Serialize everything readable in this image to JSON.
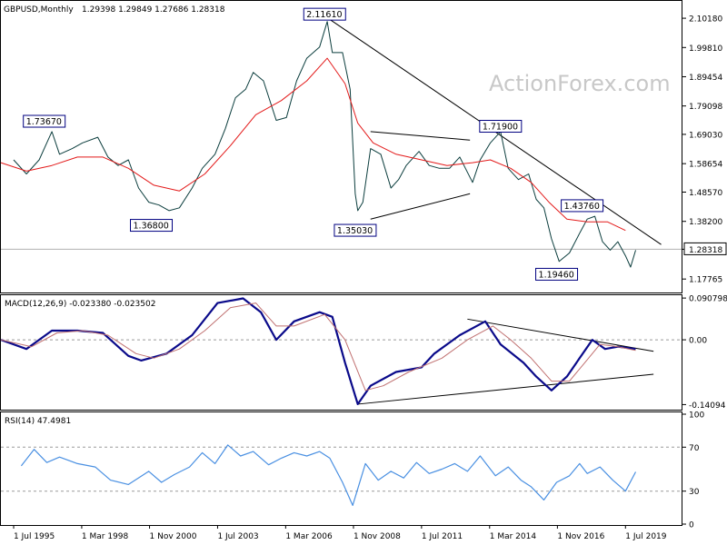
{
  "header": {
    "symbol": "GBPUSD,Monthly",
    "ohlc": "1.29398 1.29849 1.27686 1.28318"
  },
  "watermark": "ActionForex.com",
  "chart_data": [
    {
      "type": "candlestick",
      "panel": "price",
      "ylim": [
        1.13,
        2.16
      ],
      "yticks": [
        "2.10180",
        "1.99810",
        "1.89454",
        "1.79098",
        "1.69030",
        "1.58654",
        "1.48570",
        "1.38200",
        "1.28318",
        "1.17765"
      ],
      "ytick_values": [
        2.1018,
        1.9981,
        1.89454,
        1.79098,
        1.6903,
        1.58654,
        1.4857,
        1.382,
        1.28318,
        1.17765
      ],
      "current_price": "1.28318",
      "series": [
        {
          "name": "price",
          "points": [
            [
              1995.5,
              1.6
            ],
            [
              1996.0,
              1.55
            ],
            [
              1996.5,
              1.6
            ],
            [
              1996.8,
              1.66
            ],
            [
              1997.0,
              1.7
            ],
            [
              1997.3,
              1.62
            ],
            [
              1997.8,
              1.64
            ],
            [
              1998.2,
              1.66
            ],
            [
              1998.8,
              1.68
            ],
            [
              1999.2,
              1.61
            ],
            [
              1999.6,
              1.58
            ],
            [
              2000.0,
              1.6
            ],
            [
              2000.4,
              1.5
            ],
            [
              2000.8,
              1.45
            ],
            [
              2001.2,
              1.44
            ],
            [
              2001.6,
              1.42
            ],
            [
              2002.0,
              1.43
            ],
            [
              2002.5,
              1.5
            ],
            [
              2002.9,
              1.57
            ],
            [
              2003.4,
              1.62
            ],
            [
              2003.8,
              1.71
            ],
            [
              2004.2,
              1.82
            ],
            [
              2004.6,
              1.85
            ],
            [
              2004.9,
              1.91
            ],
            [
              2005.3,
              1.88
            ],
            [
              2005.8,
              1.74
            ],
            [
              2006.2,
              1.75
            ],
            [
              2006.6,
              1.88
            ],
            [
              2007.0,
              1.96
            ],
            [
              2007.5,
              2.0
            ],
            [
              2007.8,
              2.09
            ],
            [
              2008.0,
              1.98
            ],
            [
              2008.4,
              1.98
            ],
            [
              2008.7,
              1.85
            ],
            [
              2008.9,
              1.48
            ],
            [
              2009.0,
              1.42
            ],
            [
              2009.2,
              1.45
            ],
            [
              2009.5,
              1.64
            ],
            [
              2009.9,
              1.62
            ],
            [
              2010.3,
              1.5
            ],
            [
              2010.6,
              1.53
            ],
            [
              2010.9,
              1.58
            ],
            [
              2011.4,
              1.63
            ],
            [
              2011.8,
              1.58
            ],
            [
              2012.2,
              1.57
            ],
            [
              2012.6,
              1.57
            ],
            [
              2013.0,
              1.61
            ],
            [
              2013.5,
              1.52
            ],
            [
              2013.8,
              1.6
            ],
            [
              2014.2,
              1.66
            ],
            [
              2014.6,
              1.7
            ],
            [
              2014.9,
              1.57
            ],
            [
              2015.3,
              1.53
            ],
            [
              2015.7,
              1.55
            ],
            [
              2016.0,
              1.46
            ],
            [
              2016.3,
              1.43
            ],
            [
              2016.6,
              1.32
            ],
            [
              2016.9,
              1.24
            ],
            [
              2017.3,
              1.27
            ],
            [
              2017.7,
              1.34
            ],
            [
              2018.0,
              1.39
            ],
            [
              2018.3,
              1.4
            ],
            [
              2018.6,
              1.31
            ],
            [
              2018.9,
              1.28
            ],
            [
              2019.2,
              1.31
            ],
            [
              2019.5,
              1.26
            ],
            [
              2019.7,
              1.22
            ],
            [
              2019.9,
              1.28
            ]
          ]
        },
        {
          "name": "moving-average",
          "points": [
            [
              1995.0,
              1.59
            ],
            [
              1996.0,
              1.56
            ],
            [
              1997.0,
              1.58
            ],
            [
              1998.0,
              1.61
            ],
            [
              1999.0,
              1.61
            ],
            [
              2000.0,
              1.57
            ],
            [
              2001.0,
              1.51
            ],
            [
              2002.0,
              1.49
            ],
            [
              2003.0,
              1.55
            ],
            [
              2004.0,
              1.65
            ],
            [
              2005.0,
              1.76
            ],
            [
              2006.0,
              1.81
            ],
            [
              2007.0,
              1.88
            ],
            [
              2007.8,
              1.96
            ],
            [
              2008.5,
              1.87
            ],
            [
              2009.0,
              1.73
            ],
            [
              2009.6,
              1.66
            ],
            [
              2010.5,
              1.62
            ],
            [
              2011.5,
              1.6
            ],
            [
              2012.5,
              1.58
            ],
            [
              2013.5,
              1.59
            ],
            [
              2014.2,
              1.6
            ],
            [
              2015.0,
              1.57
            ],
            [
              2015.8,
              1.52
            ],
            [
              2016.5,
              1.45
            ],
            [
              2017.2,
              1.39
            ],
            [
              2018.0,
              1.38
            ],
            [
              2018.8,
              1.38
            ],
            [
              2019.5,
              1.35
            ]
          ]
        }
      ],
      "annotations": [
        {
          "text": "2.11610",
          "x": 2007.7,
          "y": 2.1161
        },
        {
          "text": "1.73670",
          "x": 1996.7,
          "y": 1.7367
        },
        {
          "text": "1.36800",
          "x": 2000.9,
          "y": 1.368
        },
        {
          "text": "1.35030",
          "x": 2008.9,
          "y": 1.3503
        },
        {
          "text": "1.71900",
          "x": 2014.6,
          "y": 1.719
        },
        {
          "text": "1.43760",
          "x": 2017.8,
          "y": 1.4376
        },
        {
          "text": "1.19460",
          "x": 2016.8,
          "y": 1.1946
        }
      ],
      "trendlines": [
        {
          "x": [
            2007.7,
            2020.9
          ],
          "y": [
            2.11,
            1.3
          ]
        },
        {
          "x": [
            2009.5,
            2013.4
          ],
          "y": [
            1.7,
            1.67
          ]
        },
        {
          "x": [
            2009.5,
            2013.4
          ],
          "y": [
            1.39,
            1.48
          ]
        }
      ]
    },
    {
      "type": "line",
      "panel": "macd",
      "title": "MACD(12,26,9) -0.023380 -0.023502",
      "ylim": [
        -0.15,
        0.095
      ],
      "yticks": [
        "0.090798",
        "0.00",
        "-0.14094"
      ],
      "ytick_values": [
        0.090798,
        0.0,
        -0.14094
      ],
      "series": [
        {
          "name": "macd",
          "points": [
            [
              1995.0,
              0.0
            ],
            [
              1996.0,
              -0.02
            ],
            [
              1997.0,
              0.02
            ],
            [
              1998.0,
              0.02
            ],
            [
              1999.0,
              0.015
            ],
            [
              2000.0,
              -0.035
            ],
            [
              2000.5,
              -0.045
            ],
            [
              2001.5,
              -0.03
            ],
            [
              2002.5,
              0.01
            ],
            [
              2003.5,
              0.08
            ],
            [
              2004.5,
              0.09
            ],
            [
              2005.2,
              0.06
            ],
            [
              2005.8,
              0.0
            ],
            [
              2006.5,
              0.04
            ],
            [
              2007.5,
              0.06
            ],
            [
              2008.0,
              0.05
            ],
            [
              2008.5,
              -0.05
            ],
            [
              2009.0,
              -0.14
            ],
            [
              2009.5,
              -0.1
            ],
            [
              2010.5,
              -0.07
            ],
            [
              2011.5,
              -0.06
            ],
            [
              2012.0,
              -0.03
            ],
            [
              2013.0,
              0.01
            ],
            [
              2014.0,
              0.04
            ],
            [
              2014.6,
              -0.01
            ],
            [
              2015.5,
              -0.05
            ],
            [
              2016.0,
              -0.08
            ],
            [
              2016.6,
              -0.11
            ],
            [
              2017.2,
              -0.08
            ],
            [
              2017.7,
              -0.04
            ],
            [
              2018.2,
              0.0
            ],
            [
              2018.7,
              -0.02
            ],
            [
              2019.2,
              -0.015
            ],
            [
              2019.9,
              -0.02
            ]
          ]
        },
        {
          "name": "signal",
          "points": [
            [
              1995.0,
              0.0
            ],
            [
              1996.2,
              -0.015
            ],
            [
              1997.2,
              0.015
            ],
            [
              1998.2,
              0.02
            ],
            [
              1999.2,
              0.01
            ],
            [
              2000.3,
              -0.03
            ],
            [
              2001.0,
              -0.04
            ],
            [
              2002.0,
              -0.02
            ],
            [
              2003.0,
              0.02
            ],
            [
              2004.0,
              0.07
            ],
            [
              2005.0,
              0.08
            ],
            [
              2005.8,
              0.03
            ],
            [
              2006.5,
              0.03
            ],
            [
              2007.7,
              0.055
            ],
            [
              2008.5,
              0.0
            ],
            [
              2009.3,
              -0.11
            ],
            [
              2010.0,
              -0.1
            ],
            [
              2011.0,
              -0.07
            ],
            [
              2012.3,
              -0.04
            ],
            [
              2013.3,
              0.0
            ],
            [
              2014.3,
              0.03
            ],
            [
              2015.0,
              0.0
            ],
            [
              2015.8,
              -0.04
            ],
            [
              2016.6,
              -0.09
            ],
            [
              2017.3,
              -0.09
            ],
            [
              2017.9,
              -0.05
            ],
            [
              2018.5,
              -0.01
            ],
            [
              2019.2,
              -0.015
            ],
            [
              2019.9,
              -0.023
            ]
          ]
        }
      ],
      "trendlines": [
        {
          "x": [
            2013.3,
            2020.6
          ],
          "y": [
            0.045,
            -0.025
          ]
        },
        {
          "x": [
            2009.0,
            2020.6
          ],
          "y": [
            -0.14,
            -0.075
          ]
        }
      ]
    },
    {
      "type": "line",
      "panel": "rsi",
      "title": "RSI(14) 47.4981",
      "ylim": [
        0,
        100
      ],
      "yticks": [
        "100",
        "70",
        "30",
        "0"
      ],
      "ytick_values": [
        100,
        70,
        30,
        0
      ],
      "series": [
        {
          "name": "rsi",
          "points": [
            [
              1995.8,
              53
            ],
            [
              1996.3,
              68
            ],
            [
              1996.8,
              56
            ],
            [
              1997.3,
              61
            ],
            [
              1998.0,
              55
            ],
            [
              1998.7,
              52
            ],
            [
              1999.3,
              40
            ],
            [
              2000.0,
              36
            ],
            [
              2000.8,
              48
            ],
            [
              2001.3,
              38
            ],
            [
              2001.8,
              45
            ],
            [
              2002.4,
              52
            ],
            [
              2002.9,
              65
            ],
            [
              2003.4,
              55
            ],
            [
              2003.9,
              72
            ],
            [
              2004.4,
              62
            ],
            [
              2004.9,
              66
            ],
            [
              2005.5,
              54
            ],
            [
              2006.0,
              60
            ],
            [
              2006.5,
              65
            ],
            [
              2007.0,
              62
            ],
            [
              2007.5,
              66
            ],
            [
              2007.9,
              60
            ],
            [
              2008.4,
              38
            ],
            [
              2008.8,
              17
            ],
            [
              2009.3,
              55
            ],
            [
              2009.8,
              40
            ],
            [
              2010.3,
              48
            ],
            [
              2010.8,
              42
            ],
            [
              2011.3,
              56
            ],
            [
              2011.8,
              46
            ],
            [
              2012.3,
              50
            ],
            [
              2012.8,
              55
            ],
            [
              2013.3,
              48
            ],
            [
              2013.8,
              62
            ],
            [
              2014.4,
              44
            ],
            [
              2014.9,
              52
            ],
            [
              2015.4,
              40
            ],
            [
              2015.8,
              34
            ],
            [
              2016.3,
              22
            ],
            [
              2016.8,
              38
            ],
            [
              2017.3,
              44
            ],
            [
              2017.7,
              55
            ],
            [
              2018.0,
              46
            ],
            [
              2018.5,
              52
            ],
            [
              2019.0,
              40
            ],
            [
              2019.5,
              30
            ],
            [
              2019.9,
              47.5
            ]
          ]
        }
      ]
    }
  ],
  "xaxis": {
    "ticks": [
      "1 Jul 1995",
      "1 Mar 1998",
      "1 Nov 2000",
      "1 Jul 2003",
      "1 Mar 2006",
      "1 Nov 2008",
      "1 Jul 2011",
      "1 Mar 2014",
      "1 Nov 2016",
      "1 Jul 2019"
    ],
    "tick_values": [
      1995.5,
      1998.17,
      2000.83,
      2003.5,
      2006.17,
      2008.83,
      2011.5,
      2014.17,
      2016.83,
      2019.5
    ],
    "xlim": [
      1995.0,
      2021.7
    ]
  },
  "colors": {
    "price": "#0b3d3d",
    "moving_average": "#e31a1a",
    "macd": "#0a0a8a",
    "signal": "#c07070",
    "rsi": "#4a90e2",
    "grid": "#9a9a9a",
    "label_border": "#000080"
  }
}
